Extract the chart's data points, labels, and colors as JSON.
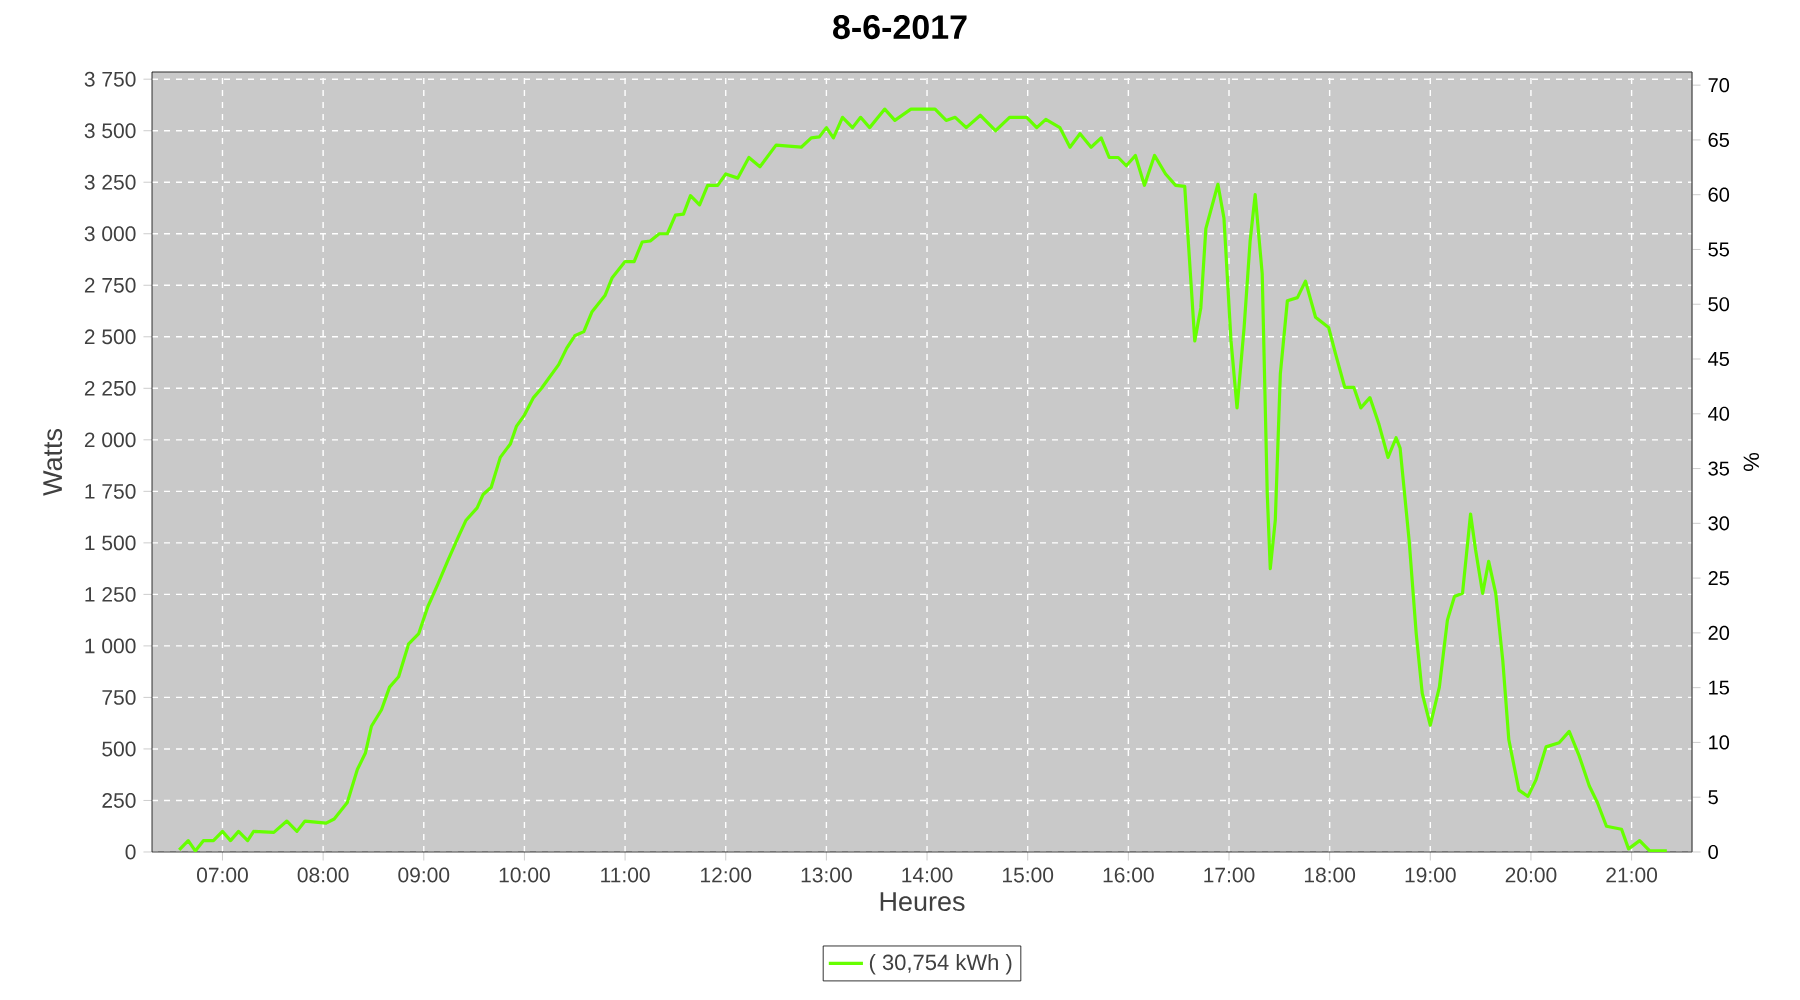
{
  "chart_data": {
    "type": "line",
    "title": "8-6-2017",
    "xlabel": "Heures",
    "ylabel": "Watts",
    "y2label": "%",
    "xlim": [
      6.3,
      21.6
    ],
    "xticks": [
      {
        "value": 7,
        "label": "07:00"
      },
      {
        "value": 8,
        "label": "08:00"
      },
      {
        "value": 9,
        "label": "09:00"
      },
      {
        "value": 10,
        "label": "10:00"
      },
      {
        "value": 11,
        "label": "11:00"
      },
      {
        "value": 12,
        "label": "12:00"
      },
      {
        "value": 13,
        "label": "13:00"
      },
      {
        "value": 14,
        "label": "14:00"
      },
      {
        "value": 15,
        "label": "15:00"
      },
      {
        "value": 16,
        "label": "16:00"
      },
      {
        "value": 17,
        "label": "17:00"
      },
      {
        "value": 18,
        "label": "18:00"
      },
      {
        "value": 19,
        "label": "19:00"
      },
      {
        "value": 20,
        "label": "20:00"
      },
      {
        "value": 21,
        "label": "21:00"
      }
    ],
    "ylim": [
      0,
      3785
    ],
    "yticks": [
      0,
      250,
      500,
      750,
      {
        "value": 1000,
        "label": "1 000"
      },
      {
        "value": 1250,
        "label": "1 250"
      },
      {
        "value": 1500,
        "label": "1 500"
      },
      {
        "value": 1750,
        "label": "1 750"
      },
      {
        "value": 2000,
        "label": "2 000"
      },
      {
        "value": 2250,
        "label": "2 250"
      },
      {
        "value": 2500,
        "label": "2 500"
      },
      {
        "value": 2750,
        "label": "2 750"
      },
      {
        "value": 3000,
        "label": "3 000"
      },
      {
        "value": 3250,
        "label": "3 250"
      },
      {
        "value": 3500,
        "label": "3 500"
      },
      {
        "value": 3750,
        "label": "3 750"
      }
    ],
    "y2lim": [
      0,
      71.2
    ],
    "y2ticks": [
      0,
      5,
      10,
      15,
      20,
      25,
      30,
      35,
      40,
      45,
      50,
      55,
      60,
      65,
      70
    ],
    "grid": true,
    "legend": "bottom",
    "marker": "none",
    "line_style": "solid",
    "series": [
      {
        "name": "( 30,754 kWh )",
        "color": "#66ff00",
        "x": [
          6.57,
          6.66,
          6.73,
          6.81,
          6.91,
          7.0,
          7.08,
          7.16,
          7.25,
          7.31,
          7.51,
          7.64,
          7.74,
          7.82,
          8.03,
          8.11,
          8.24,
          8.34,
          8.42,
          8.48,
          8.58,
          8.66,
          8.75,
          8.85,
          8.95,
          9.04,
          9.14,
          9.24,
          9.34,
          9.42,
          9.53,
          9.59,
          9.67,
          9.76,
          9.86,
          9.92,
          10.0,
          10.09,
          10.17,
          10.34,
          10.42,
          10.5,
          10.59,
          10.67,
          10.8,
          10.87,
          11.0,
          11.09,
          11.17,
          11.25,
          11.34,
          11.42,
          11.5,
          11.58,
          11.65,
          11.74,
          11.82,
          11.92,
          12.0,
          12.12,
          12.23,
          12.34,
          12.5,
          12.75,
          12.85,
          12.93,
          13.0,
          13.07,
          13.16,
          13.26,
          13.34,
          13.43,
          13.58,
          13.68,
          13.84,
          14.08,
          14.19,
          14.28,
          14.39,
          14.53,
          14.68,
          14.82,
          14.99,
          15.09,
          15.18,
          15.32,
          15.42,
          15.52,
          15.63,
          15.73,
          15.81,
          15.9,
          15.98,
          16.07,
          16.16,
          16.26,
          16.37,
          16.47,
          16.56,
          16.6,
          16.66,
          16.72,
          16.77,
          16.89,
          16.95,
          17.02,
          17.08,
          17.15,
          17.21,
          17.26,
          17.33,
          17.38,
          17.41,
          17.46,
          17.51,
          17.58,
          17.68,
          17.76,
          17.86,
          17.99,
          18.06,
          18.15,
          18.24,
          18.31,
          18.4,
          18.49,
          18.58,
          18.66,
          18.7,
          18.79,
          18.86,
          18.92,
          19.0,
          19.09,
          19.17,
          19.24,
          19.32,
          19.4,
          19.45,
          19.52,
          19.58,
          19.65,
          19.72,
          19.78,
          19.88,
          19.97,
          20.05,
          20.15,
          20.28,
          20.38,
          20.48,
          20.58,
          20.66,
          20.75,
          20.9,
          20.97,
          21.08,
          21.18,
          21.35
        ],
        "values": [
          10,
          55,
          5,
          55,
          55,
          100,
          55,
          100,
          55,
          100,
          95,
          150,
          100,
          150,
          140,
          160,
          240,
          400,
          480,
          610,
          690,
          800,
          850,
          1010,
          1060,
          1190,
          1300,
          1415,
          1525,
          1610,
          1670,
          1735,
          1770,
          1915,
          1980,
          2065,
          2120,
          2205,
          2250,
          2365,
          2445,
          2505,
          2525,
          2620,
          2700,
          2785,
          2865,
          2865,
          2960,
          2965,
          3000,
          3000,
          3090,
          3095,
          3185,
          3140,
          3235,
          3235,
          3290,
          3270,
          3370,
          3325,
          3430,
          3420,
          3465,
          3470,
          3515,
          3465,
          3565,
          3515,
          3565,
          3515,
          3605,
          3550,
          3605,
          3605,
          3550,
          3565,
          3515,
          3575,
          3500,
          3565,
          3565,
          3515,
          3555,
          3515,
          3420,
          3485,
          3420,
          3465,
          3370,
          3370,
          3330,
          3380,
          3235,
          3380,
          3290,
          3235,
          3230,
          2930,
          2480,
          2640,
          3025,
          3240,
          3075,
          2480,
          2155,
          2545,
          2965,
          3190,
          2805,
          1740,
          1375,
          1610,
          2320,
          2675,
          2690,
          2770,
          2595,
          2545,
          2415,
          2255,
          2255,
          2155,
          2205,
          2075,
          1915,
          2010,
          1960,
          1510,
          1060,
          770,
          615,
          800,
          1125,
          1240,
          1255,
          1640,
          1465,
          1255,
          1410,
          1255,
          930,
          545,
          300,
          270,
          350,
          510,
          530,
          585,
          465,
          320,
          240,
          125,
          110,
          15,
          55,
          5,
          5
        ]
      }
    ]
  }
}
